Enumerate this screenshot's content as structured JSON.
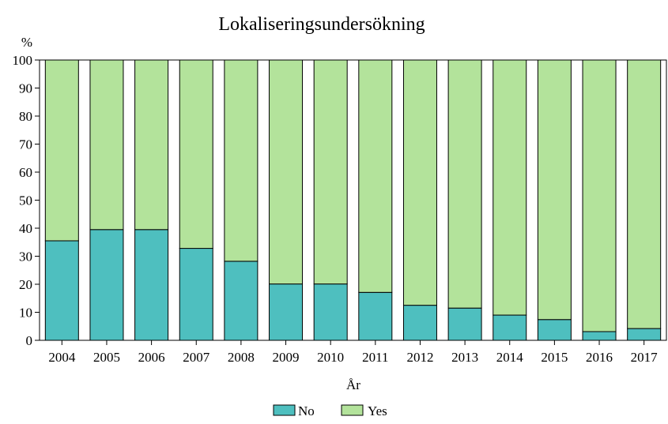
{
  "chart_data": {
    "type": "bar",
    "stacked": true,
    "title": "Lokaliseringsundersökning",
    "xlabel": "År",
    "ylabel": "%",
    "ylim": [
      0,
      100
    ],
    "yticks": [
      0,
      10,
      20,
      30,
      40,
      50,
      60,
      70,
      80,
      90,
      100
    ],
    "categories": [
      "2004",
      "2005",
      "2006",
      "2007",
      "2008",
      "2009",
      "2010",
      "2011",
      "2012",
      "2013",
      "2014",
      "2015",
      "2016",
      "2017"
    ],
    "series": [
      {
        "name": "No",
        "color": "#4ebfbf",
        "values": [
          35.5,
          39.5,
          39.5,
          32.8,
          28.2,
          20.1,
          20.1,
          17.1,
          12.5,
          11.5,
          9.0,
          7.4,
          3.1,
          4.2
        ]
      },
      {
        "name": "Yes",
        "color": "#b3e39b",
        "values": [
          64.5,
          60.5,
          60.5,
          67.2,
          71.8,
          79.9,
          79.9,
          82.9,
          87.5,
          88.5,
          91.0,
          92.6,
          96.9,
          95.8
        ]
      }
    ],
    "grid": false,
    "legend_position": "bottom"
  }
}
